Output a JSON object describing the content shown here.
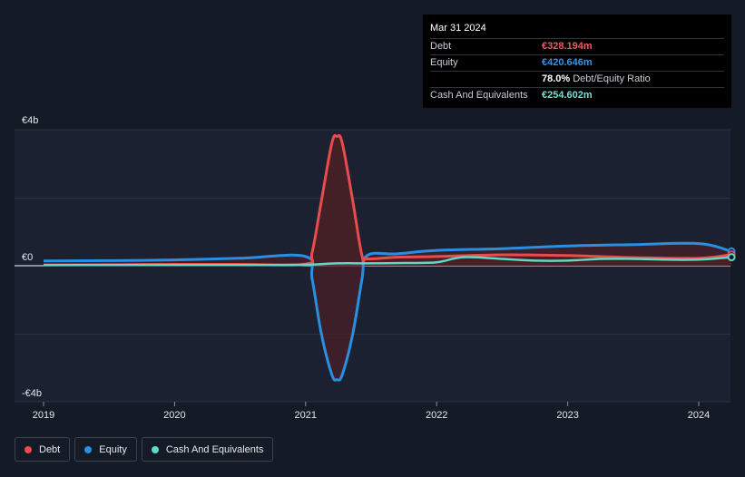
{
  "colors": {
    "background": "#151b26",
    "plot_past": "#1b2130",
    "debt": "#e84c4c",
    "debt_fill": "#4a2025",
    "equity": "#2a8fe0",
    "cash": "#5fd8c8"
  },
  "tooltip": {
    "date": "Mar 31 2024",
    "rows": [
      {
        "label": "Debt",
        "value": "€328.194m",
        "color": "#f05a5a"
      },
      {
        "label": "Equity",
        "value": "€420.646m",
        "color": "#2f96ea"
      },
      {
        "ratio_value": "78.0%",
        "ratio_label": "Debt/Equity Ratio"
      },
      {
        "label": "Cash And Equivalents",
        "value": "€254.602m",
        "color": "#6fe3d2"
      }
    ]
  },
  "legend": [
    {
      "label": "Debt",
      "color": "#e84c4c"
    },
    {
      "label": "Equity",
      "color": "#2a8fe0"
    },
    {
      "label": "Cash And Equivalents",
      "color": "#5fd8c8"
    }
  ],
  "chart_data": {
    "type": "area",
    "x_tick_labels": [
      "2019",
      "2020",
      "2021",
      "2022",
      "2023",
      "2024"
    ],
    "y_tick_labels": [
      "€4b",
      "€0",
      "-€4b"
    ],
    "xlim": [
      2019.0,
      2024.25
    ],
    "ylim": [
      -4,
      4
    ],
    "y_unit": "€b",
    "grid": true,
    "legend_position": "bottom-left",
    "series": [
      {
        "name": "Debt",
        "color": "#e84c4c",
        "x": [
          2019.0,
          2019.5,
          2020.0,
          2020.5,
          2021.0,
          2021.05,
          2021.12,
          2021.2,
          2021.24,
          2021.28,
          2021.36,
          2021.43,
          2021.47,
          2021.7,
          2022.0,
          2022.5,
          2023.0,
          2023.5,
          2024.0,
          2024.25
        ],
        "y": [
          0.02,
          0.03,
          0.04,
          0.04,
          0.05,
          0.4,
          1.9,
          3.6,
          3.8,
          3.6,
          1.9,
          0.3,
          0.2,
          0.25,
          0.27,
          0.32,
          0.3,
          0.24,
          0.22,
          0.33
        ]
      },
      {
        "name": "Equity",
        "color": "#2a8fe0",
        "x": [
          2019.0,
          2019.5,
          2020.0,
          2020.5,
          2021.0,
          2021.05,
          2021.12,
          2021.2,
          2021.24,
          2021.28,
          2021.36,
          2021.43,
          2021.47,
          2021.7,
          2022.0,
          2022.5,
          2023.0,
          2023.5,
          2024.0,
          2024.25
        ],
        "y": [
          0.14,
          0.15,
          0.17,
          0.22,
          0.27,
          -0.4,
          -2.0,
          -3.2,
          -3.35,
          -3.2,
          -2.0,
          -0.4,
          0.3,
          0.35,
          0.45,
          0.5,
          0.58,
          0.62,
          0.65,
          0.42
        ]
      },
      {
        "name": "Cash And Equivalents",
        "color": "#5fd8c8",
        "x": [
          2019.0,
          2019.5,
          2020.0,
          2020.5,
          2021.0,
          2021.24,
          2021.5,
          2021.75,
          2022.0,
          2022.2,
          2022.5,
          2022.75,
          2023.0,
          2023.25,
          2023.5,
          2023.75,
          2024.0,
          2024.25
        ],
        "y": [
          0.02,
          0.02,
          0.02,
          0.02,
          0.03,
          0.07,
          0.07,
          0.08,
          0.1,
          0.25,
          0.2,
          0.15,
          0.15,
          0.2,
          0.2,
          0.18,
          0.18,
          0.25
        ]
      }
    ]
  }
}
